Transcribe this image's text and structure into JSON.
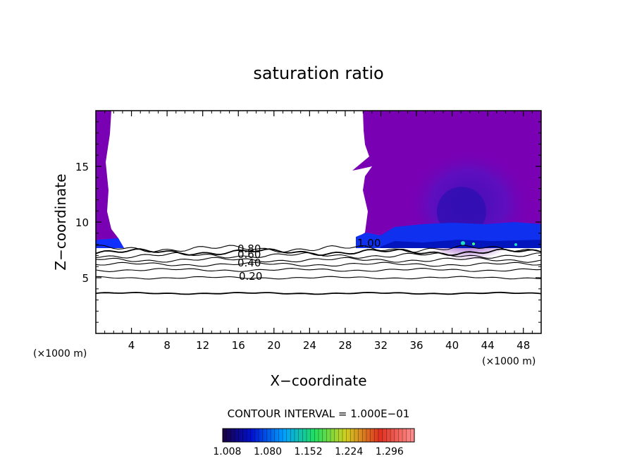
{
  "chart_data": {
    "type": "heatmap",
    "title": "saturation ratio",
    "xlabel": "X−coordinate",
    "ylabel": "Z−coordinate",
    "x_unit": "(×1000 m)",
    "xlim": [
      0,
      50
    ],
    "ylim": [
      0,
      20
    ],
    "x_ticks": [
      4,
      8,
      12,
      16,
      20,
      24,
      28,
      32,
      36,
      40,
      44,
      48
    ],
    "y_ticks": [
      5,
      10,
      15
    ],
    "contour_interval_text": "CONTOUR INTERVAL = 1.000E−01",
    "contour_labels": [
      "0.80",
      "0.60",
      "0.40",
      "0.20",
      "1.00"
    ],
    "contour_levels": [
      0.2,
      0.3,
      0.4,
      0.5,
      0.6,
      0.7,
      0.8,
      0.9
    ],
    "contour_heights": [
      3.6,
      5.0,
      5.7,
      6.2,
      6.6,
      7.0,
      7.3,
      7.6
    ],
    "colorbar": {
      "ticks": [
        "1.008",
        "1.080",
        "1.152",
        "1.224",
        "1.296"
      ],
      "min": 1.0,
      "max": 1.34,
      "colors": [
        "#1a0040",
        "#0010d0",
        "#00a0ff",
        "#20e060",
        "#d0d020",
        "#e03020",
        "#ff9090"
      ]
    },
    "shaded_regions": [
      {
        "name": "left supersaturated column",
        "x": [
          0,
          3
        ],
        "z": [
          7.5,
          20
        ],
        "color": "#7a00b4"
      },
      {
        "name": "right supersaturated region",
        "x": [
          29.5,
          50
        ],
        "z": [
          7.5,
          20
        ],
        "color": "#7a00b4"
      }
    ]
  }
}
